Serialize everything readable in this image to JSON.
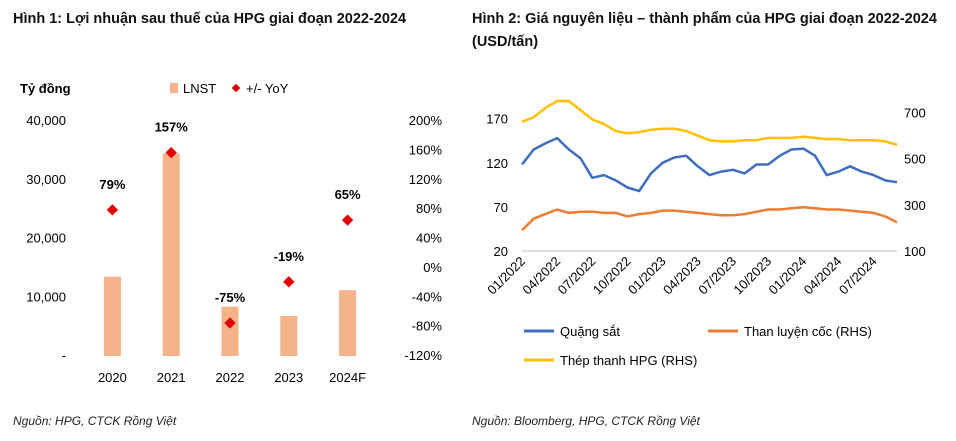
{
  "figure1": {
    "title": "Hình 1: Lợi nhuận sau thuế của HPG giai đoạn 2022-2024",
    "source": "Nguồn: HPG, CTCK Rồng Việt"
  },
  "figure2": {
    "title": "Hình 2: Giá nguyên liệu – thành phẩm của HPG giai đoạn 2022-2024 (USD/tấn)",
    "source": "Nguồn: Bloomberg, HPG, CTCK Rồng Việt"
  },
  "colors": {
    "bar": "#F5B38A",
    "yoy_marker": "#E00000",
    "iron_ore": "#3F6DBF",
    "coking_coal": "#ED7D31",
    "steel_rebar": "#FFC000"
  },
  "chart_data": [
    {
      "type": "bar",
      "ylabel": "Tỷ đồng",
      "categories": [
        "2020",
        "2021",
        "2022",
        "2023",
        "2024F"
      ],
      "left_axis": {
        "ylim": [
          0,
          40000
        ],
        "ticks": [
          "-",
          "10,000",
          "20,000",
          "30,000",
          "40,000"
        ]
      },
      "right_axis": {
        "ylim": [
          -120,
          200
        ],
        "ticks": [
          "-120%",
          "-80%",
          "-40%",
          "0%",
          "40%",
          "80%",
          "120%",
          "160%",
          "200%"
        ]
      },
      "series": [
        {
          "name": "LNST",
          "kind": "bar",
          "axis": "left",
          "values": [
            13500,
            34500,
            8400,
            6800,
            11200
          ]
        },
        {
          "name": "+/- YoY",
          "kind": "marker",
          "axis": "right",
          "values": [
            79,
            157,
            -75,
            -19,
            65
          ],
          "labels": [
            "79%",
            "157%",
            "-75%",
            "-19%",
            "65%"
          ]
        }
      ],
      "legend_position": "top",
      "grid": false
    },
    {
      "type": "line",
      "x_ticks": [
        "01/2022",
        "04/2022",
        "07/2022",
        "10/2022",
        "01/2023",
        "04/2023",
        "07/2023",
        "10/2023",
        "01/2024",
        "04/2024",
        "07/2024"
      ],
      "xlim": [
        "2022-01",
        "2024-09"
      ],
      "left_axis": {
        "ylim": [
          20,
          190
        ],
        "ticks": [
          "20",
          "70",
          "120",
          "170"
        ]
      },
      "right_axis": {
        "ylim": [
          100,
          750
        ],
        "ticks": [
          "100",
          "300",
          "500",
          "700"
        ]
      },
      "series": [
        {
          "name": "Quặng sắt",
          "axis": "left",
          "x": [
            "2022-01",
            "2022-02",
            "2022-03",
            "2022-04",
            "2022-05",
            "2022-06",
            "2022-07",
            "2022-08",
            "2022-09",
            "2022-10",
            "2022-11",
            "2022-12",
            "2023-01",
            "2023-02",
            "2023-03",
            "2023-04",
            "2023-05",
            "2023-06",
            "2023-07",
            "2023-08",
            "2023-09",
            "2023-10",
            "2023-11",
            "2023-12",
            "2024-01",
            "2024-02",
            "2024-03",
            "2024-04",
            "2024-05",
            "2024-06",
            "2024-07",
            "2024-08",
            "2024-09"
          ],
          "y": [
            118,
            135,
            142,
            148,
            135,
            125,
            103,
            106,
            100,
            92,
            88,
            108,
            120,
            126,
            128,
            116,
            106,
            110,
            112,
            108,
            118,
            118,
            128,
            135,
            136,
            128,
            106,
            110,
            116,
            110,
            106,
            100,
            98
          ]
        },
        {
          "name": "Than luyện cốc (RHS)",
          "axis": "right",
          "x": [
            "2022-01",
            "2022-02",
            "2022-03",
            "2022-04",
            "2022-05",
            "2022-06",
            "2022-07",
            "2022-08",
            "2022-09",
            "2022-10",
            "2022-11",
            "2022-12",
            "2023-01",
            "2023-02",
            "2023-03",
            "2023-04",
            "2023-05",
            "2023-06",
            "2023-07",
            "2023-08",
            "2023-09",
            "2023-10",
            "2023-11",
            "2023-12",
            "2024-01",
            "2024-02",
            "2024-03",
            "2024-04",
            "2024-05",
            "2024-06",
            "2024-07",
            "2024-08",
            "2024-09"
          ],
          "y": [
            190,
            240,
            260,
            280,
            265,
            270,
            270,
            265,
            265,
            250,
            260,
            265,
            275,
            275,
            270,
            265,
            260,
            255,
            255,
            260,
            270,
            280,
            280,
            285,
            290,
            285,
            280,
            280,
            275,
            270,
            265,
            250,
            225
          ]
        },
        {
          "name": "Thép thanh HPG (RHS)",
          "axis": "right",
          "x": [
            "2022-01",
            "2022-02",
            "2022-03",
            "2022-04",
            "2022-05",
            "2022-06",
            "2022-07",
            "2022-08",
            "2022-09",
            "2022-10",
            "2022-11",
            "2022-12",
            "2023-01",
            "2023-02",
            "2023-03",
            "2023-04",
            "2023-05",
            "2023-06",
            "2023-07",
            "2023-08",
            "2023-09",
            "2023-10",
            "2023-11",
            "2023-12",
            "2024-01",
            "2024-02",
            "2024-03",
            "2024-04",
            "2024-05",
            "2024-06",
            "2024-07",
            "2024-08",
            "2024-09"
          ],
          "y": [
            660,
            680,
            720,
            750,
            750,
            710,
            670,
            650,
            620,
            610,
            615,
            625,
            630,
            630,
            620,
            600,
            580,
            575,
            575,
            580,
            580,
            590,
            590,
            590,
            595,
            590,
            585,
            585,
            580,
            580,
            580,
            575,
            560
          ]
        }
      ],
      "legend_position": "bottom",
      "grid": false
    }
  ]
}
